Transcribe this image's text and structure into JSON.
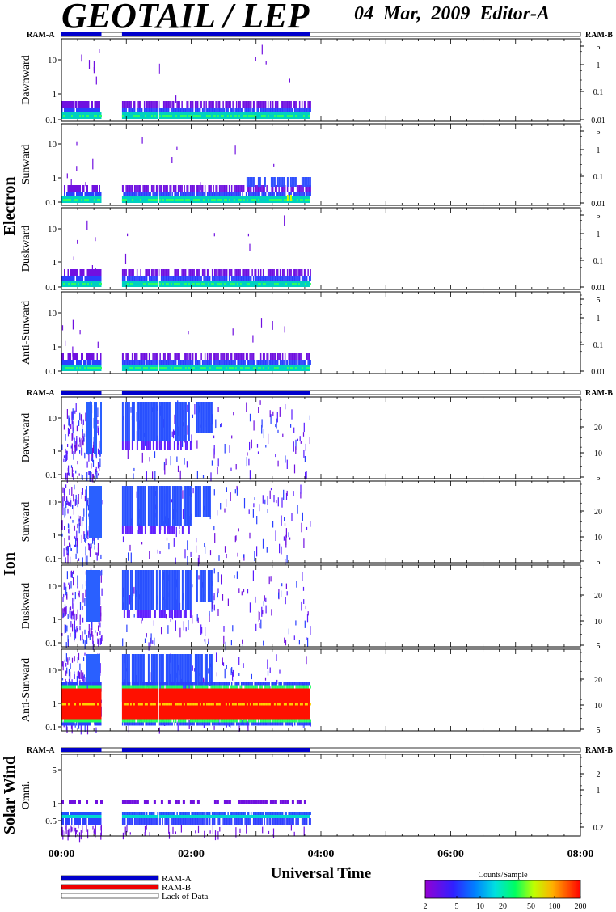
{
  "header": {
    "title": "GEOTAIL / LEP",
    "date": "04 Mar, 2009",
    "editor": "Editor-A"
  },
  "colors": {
    "ram_a": "#0000cc",
    "ram_b": "#ee0000",
    "lack_of_data": "#ffffff"
  },
  "chart_data": {
    "type": "heatmap",
    "x_axis": {
      "label": "Universal Time",
      "range": [
        "00:00",
        "08:00"
      ],
      "tick_labels": [
        "00:00",
        "02:00",
        "04:00",
        "06:00",
        "08:00"
      ],
      "data_end": "03:50"
    },
    "groups": [
      {
        "name": "Electron",
        "status_left": "RAM-A",
        "status_right": "RAM-B",
        "status_segments": [
          {
            "state": "RAM-A",
            "start": "00:00",
            "end": "00:37"
          },
          {
            "state": "Lack of Data",
            "start": "00:37",
            "end": "00:56"
          },
          {
            "state": "RAM-A",
            "start": "00:56",
            "end": "03:50"
          },
          {
            "state": "Lack of Data",
            "start": "03:50",
            "end": "08:00"
          }
        ],
        "panels": [
          {
            "label": "Dawnward",
            "left_ticks": [
              "10",
              "1",
              "0.1"
            ],
            "right_ticks": [
              "5",
              "1",
              "0.1",
              "0.01"
            ]
          },
          {
            "label": "Sunward",
            "left_ticks": [
              "10",
              "1",
              "0.1"
            ],
            "right_ticks": [
              "5",
              "1",
              "0.1",
              "0.01"
            ]
          },
          {
            "label": "Duskward",
            "left_ticks": [
              "10",
              "1",
              "0.1"
            ],
            "right_ticks": [
              "5",
              "1",
              "0.1",
              "0.01"
            ]
          },
          {
            "label": "Anti-Sunward",
            "left_ticks": [
              "10",
              "1",
              "0.1"
            ],
            "right_ticks": [
              "5",
              "1",
              "0.1",
              "0.01"
            ]
          }
        ]
      },
      {
        "name": "Ion",
        "status_left": "RAM-A",
        "status_right": "RAM-B",
        "status_segments": [
          {
            "state": "RAM-A",
            "start": "00:00",
            "end": "00:37"
          },
          {
            "state": "Lack of Data",
            "start": "00:37",
            "end": "00:56"
          },
          {
            "state": "RAM-A",
            "start": "00:56",
            "end": "03:50"
          },
          {
            "state": "Lack of Data",
            "start": "03:50",
            "end": "08:00"
          }
        ],
        "panels": [
          {
            "label": "Dawnward",
            "left_ticks": [
              "10",
              "1",
              "0.1"
            ],
            "right_ticks": [
              "20",
              "10",
              "5"
            ]
          },
          {
            "label": "Sunward",
            "left_ticks": [
              "10",
              "1",
              "0.1"
            ],
            "right_ticks": [
              "20",
              "10",
              "5"
            ]
          },
          {
            "label": "Duskward",
            "left_ticks": [
              "10",
              "1",
              "0.1"
            ],
            "right_ticks": [
              "20",
              "10",
              "5"
            ]
          },
          {
            "label": "Anti-Sunward",
            "left_ticks": [
              "10",
              "1",
              "0.1"
            ],
            "right_ticks": [
              "20",
              "10",
              "5"
            ]
          }
        ]
      },
      {
        "name": "Solar Wind",
        "status_left": "RAM-A",
        "status_right": "RAM-B",
        "status_segments": [
          {
            "state": "RAM-A",
            "start": "00:00",
            "end": "00:37"
          },
          {
            "state": "Lack of Data",
            "start": "00:37",
            "end": "00:56"
          },
          {
            "state": "RAM-A",
            "start": "00:56",
            "end": "03:50"
          },
          {
            "state": "Lack of Data",
            "start": "03:50",
            "end": "08:00"
          }
        ],
        "panels": [
          {
            "label": "Omni.",
            "left_ticks": [
              "5",
              "1",
              "0.5"
            ],
            "right_ticks": [
              "2",
              "1",
              "0.2"
            ]
          }
        ]
      }
    ],
    "legend": {
      "items": [
        "RAM-A",
        "RAM-B",
        "Lack of Data"
      ]
    },
    "colorbar": {
      "title": "Counts/Sample",
      "ticks": [
        "2",
        "5",
        "10",
        "20",
        "50",
        "100",
        "200"
      ]
    }
  }
}
